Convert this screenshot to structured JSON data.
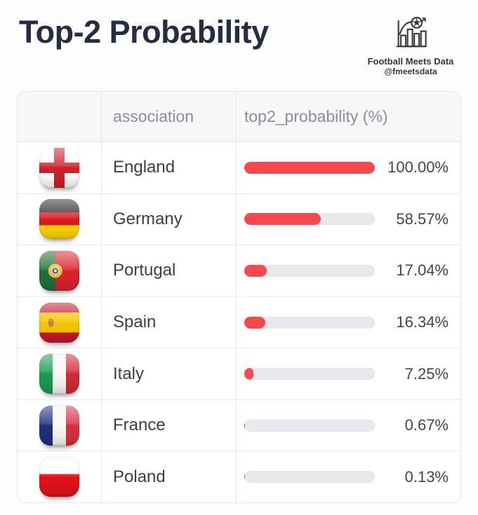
{
  "page": {
    "title": "Top-2 Probability"
  },
  "brand": {
    "name": "Football Meets Data",
    "handle": "@fmeetsdata",
    "icon": "bar-chart-football-icon"
  },
  "table": {
    "columns": {
      "flag": "",
      "association": "association",
      "probability": "top2_probability (%)"
    },
    "rows": [
      {
        "flag": "england",
        "association": "England",
        "probability": 100.0,
        "probability_label": "100.00%"
      },
      {
        "flag": "germany",
        "association": "Germany",
        "probability": 58.57,
        "probability_label": "58.57%"
      },
      {
        "flag": "portugal",
        "association": "Portugal",
        "probability": 17.04,
        "probability_label": "17.04%"
      },
      {
        "flag": "spain",
        "association": "Spain",
        "probability": 16.34,
        "probability_label": "16.34%"
      },
      {
        "flag": "italy",
        "association": "Italy",
        "probability": 7.25,
        "probability_label": "7.25%"
      },
      {
        "flag": "france",
        "association": "France",
        "probability": 0.67,
        "probability_label": "0.67%"
      },
      {
        "flag": "poland",
        "association": "Poland",
        "probability": 0.13,
        "probability_label": "0.13%"
      }
    ]
  },
  "colors": {
    "bar_fill": "#f7484e",
    "bar_track": "#eae8ed",
    "title_text": "#272d41",
    "header_text": "#8d8d96",
    "body_text": "#383e4a"
  },
  "chart_data": {
    "type": "bar",
    "orientation": "horizontal",
    "title": "Top-2 Probability",
    "categories": [
      "England",
      "Germany",
      "Portugal",
      "Spain",
      "Italy",
      "France",
      "Poland"
    ],
    "values": [
      100.0,
      58.57,
      17.04,
      16.34,
      7.25,
      0.67,
      0.13
    ],
    "value_labels": [
      "100.00%",
      "58.57%",
      "17.04%",
      "16.34%",
      "7.25%",
      "0.67%",
      "0.13%"
    ],
    "xlabel": "top2_probability (%)",
    "xlim": [
      0,
      100
    ],
    "legend": false,
    "grid": false
  }
}
